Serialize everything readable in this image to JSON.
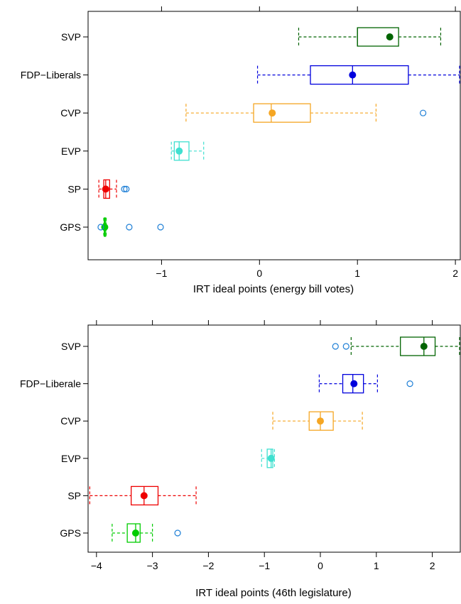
{
  "chart_data": [
    {
      "type": "boxplot",
      "xlabel": "IRT ideal points (energy bill votes)",
      "xlim": [
        -1.75,
        2.05
      ],
      "xticks": [
        -1,
        0,
        1,
        2
      ],
      "xtick_labels": [
        "−1",
        "0",
        "1",
        "2"
      ],
      "grid": false,
      "groups": [
        {
          "label": "SVP",
          "color": "#006400",
          "whisker_low": 0.4,
          "q1": 1.0,
          "median": 1.0,
          "q3": 1.42,
          "whisker_high": 1.85,
          "mean": 1.33,
          "outliers": []
        },
        {
          "label": "FDP−Liberals",
          "color": "#0000dd",
          "whisker_low": -0.02,
          "q1": 0.52,
          "median": 0.95,
          "q3": 1.52,
          "whisker_high": 2.05,
          "mean": 0.95,
          "outliers": []
        },
        {
          "label": "CVP",
          "color": "#f5a623",
          "whisker_low": -0.75,
          "q1": -0.06,
          "median": 0.12,
          "q3": 0.52,
          "whisker_high": 1.19,
          "mean": 0.13,
          "outliers": [
            1.67
          ]
        },
        {
          "label": "EVP",
          "color": "#40e0d0",
          "whisker_low": -0.9,
          "q1": -0.87,
          "median": -0.82,
          "q3": -0.72,
          "whisker_high": -0.57,
          "mean": -0.82,
          "outliers": []
        },
        {
          "label": "SP",
          "color": "#ee0000",
          "whisker_low": -1.64,
          "q1": -1.59,
          "median": -1.57,
          "q3": -1.53,
          "whisker_high": -1.46,
          "mean": -1.57,
          "outliers": [
            -1.38,
            -1.36
          ]
        },
        {
          "label": "GPS",
          "color": "#00cc00",
          "whisker_low": -1.59,
          "q1": -1.585,
          "median": -1.58,
          "q3": -1.57,
          "whisker_high": -1.565,
          "mean": -1.58,
          "outliers": [
            -1.62,
            -1.33,
            -1.01
          ]
        }
      ]
    },
    {
      "type": "boxplot",
      "xlabel": "IRT ideal points (46th legislature)",
      "xlim": [
        -4.15,
        2.5
      ],
      "xticks": [
        -4,
        -3,
        -2,
        -1,
        0,
        1,
        2
      ],
      "xtick_labels": [
        "−4",
        "−3",
        "−2",
        "−1",
        "0",
        "1",
        "2"
      ],
      "grid": false,
      "groups": [
        {
          "label": "SVP",
          "color": "#006400",
          "whisker_low": 0.55,
          "q1": 1.43,
          "median": 1.85,
          "q3": 2.05,
          "whisker_high": 2.5,
          "mean": 1.85,
          "outliers": [
            0.27,
            0.46
          ]
        },
        {
          "label": "FDP−Liberale",
          "color": "#0000dd",
          "whisker_low": -0.02,
          "q1": 0.4,
          "median": 0.58,
          "q3": 0.77,
          "whisker_high": 1.02,
          "mean": 0.6,
          "outliers": [
            1.6
          ]
        },
        {
          "label": "CVP",
          "color": "#f5a623",
          "whisker_low": -0.85,
          "q1": -0.2,
          "median": 0.0,
          "q3": 0.23,
          "whisker_high": 0.75,
          "mean": 0.0,
          "outliers": []
        },
        {
          "label": "EVP",
          "color": "#40e0d0",
          "whisker_low": -1.05,
          "q1": -0.95,
          "median": -0.88,
          "q3": -0.85,
          "whisker_high": -0.82,
          "mean": -0.88,
          "outliers": []
        },
        {
          "label": "SP",
          "color": "#ee0000",
          "whisker_low": -4.12,
          "q1": -3.38,
          "median": -3.15,
          "q3": -2.9,
          "whisker_high": -2.22,
          "mean": -3.15,
          "outliers": []
        },
        {
          "label": "GPS",
          "color": "#00cc00",
          "whisker_low": -3.72,
          "q1": -3.45,
          "median": -3.3,
          "q3": -3.22,
          "whisker_high": -3.0,
          "mean": -3.3,
          "outliers": [
            -2.55
          ]
        }
      ]
    }
  ]
}
